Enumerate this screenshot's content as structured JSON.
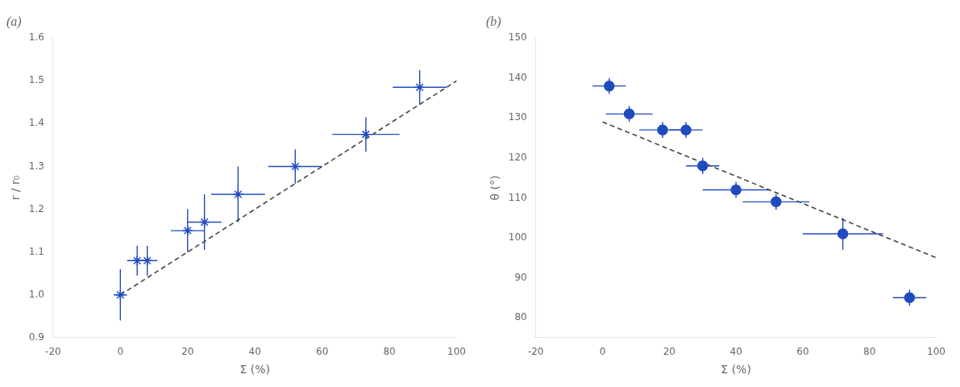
{
  "chart_data": [
    {
      "type": "scatter",
      "title": "(a)",
      "x_label": "Σ (%)",
      "y_label": "r / r₀",
      "xlim": [
        -20,
        100
      ],
      "xticks": [
        -20,
        0,
        20,
        40,
        60,
        80,
        100
      ],
      "ylim": [
        0.9,
        1.6
      ],
      "yticks": [
        0.9,
        {
          "value": 1.0,
          "label": "1.0"
        },
        1.1,
        1.2,
        1.3,
        1.4,
        1.5,
        1.6
      ],
      "grid": false,
      "series": [
        {
          "type": "line",
          "color": "#444444",
          "line_style": "dashed",
          "x": [
            0,
            100
          ],
          "values": [
            1.0,
            1.5
          ]
        },
        {
          "type": "scatter",
          "color": "#1f4bbf",
          "marker": "star",
          "x": [
            0,
            5,
            8,
            20,
            25,
            35,
            52,
            73,
            89
          ],
          "values": [
            1.0,
            1.08,
            1.08,
            1.15,
            1.17,
            1.235,
            1.3,
            1.375,
            1.485
          ],
          "xerr": [
            2,
            3,
            3,
            5,
            5,
            8,
            8,
            10,
            8
          ],
          "yerr": [
            0.06,
            0.035,
            0.035,
            0.05,
            0.065,
            0.065,
            0.04,
            0.04,
            0.04
          ]
        }
      ]
    },
    {
      "type": "scatter",
      "title": "(b)",
      "x_label": "Σ (%)",
      "y_label": "θ (°)",
      "xlim": [
        -20,
        100
      ],
      "xticks": [
        -20,
        0,
        20,
        40,
        60,
        80,
        100
      ],
      "ylim": [
        75,
        150
      ],
      "yticks": [
        80,
        90,
        100,
        110,
        120,
        130,
        140,
        150
      ],
      "grid": false,
      "series": [
        {
          "type": "line",
          "color": "#444444",
          "line_style": "dashed",
          "x": [
            0,
            100
          ],
          "values": [
            129,
            95
          ]
        },
        {
          "type": "scatter",
          "color": "#1f4bbf",
          "marker": "circle",
          "x": [
            2,
            8,
            18,
            25,
            30,
            40,
            52,
            72,
            92
          ],
          "values": [
            138,
            131,
            127,
            127,
            118,
            112,
            109,
            101,
            85
          ],
          "xerr": [
            5,
            7,
            7,
            5,
            5,
            10,
            10,
            12,
            5
          ],
          "yerr": [
            2,
            2,
            2,
            2,
            2,
            2,
            2,
            4,
            2
          ]
        }
      ]
    }
  ]
}
